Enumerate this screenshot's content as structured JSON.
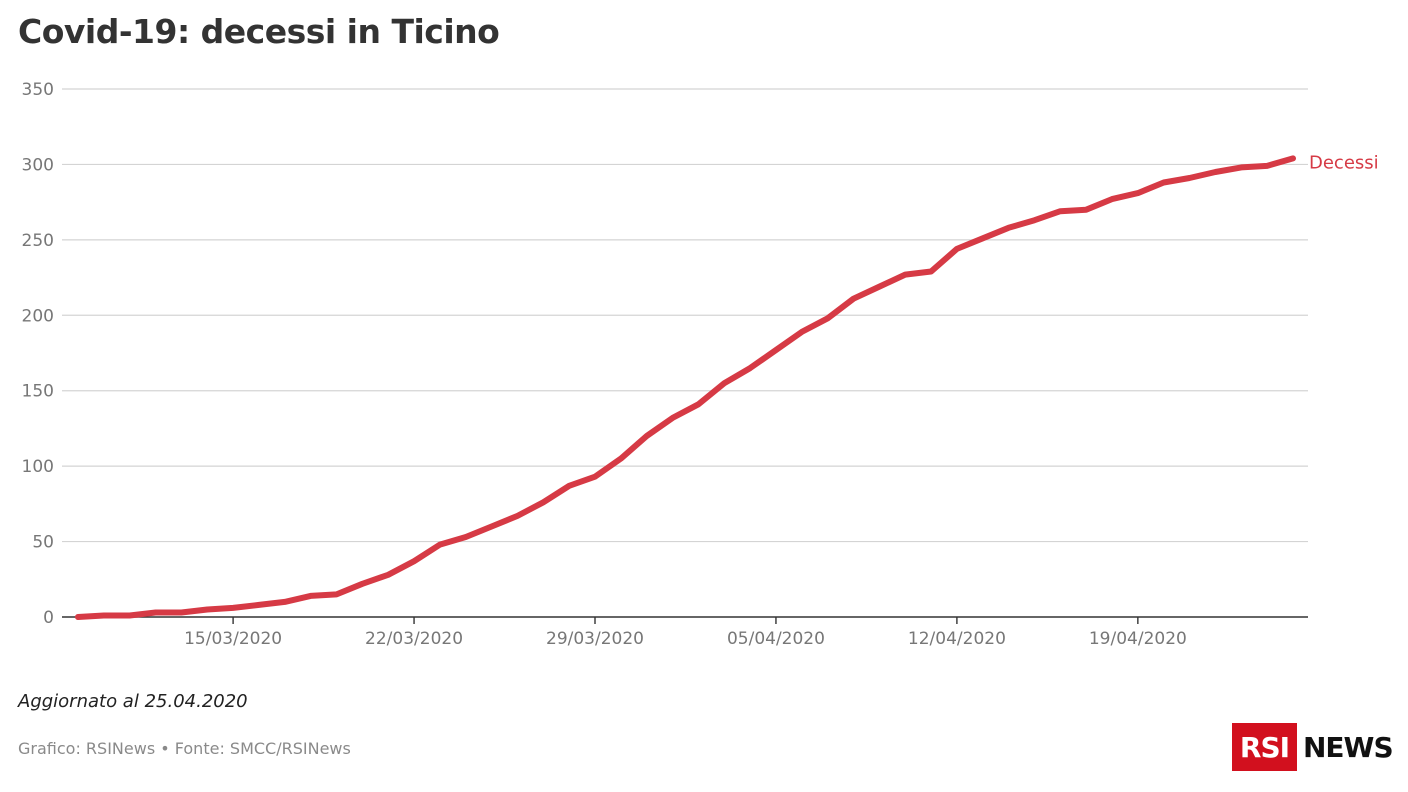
{
  "title": "Covid-19: decessi in Ticino",
  "footer": {
    "note": "Aggiornato al 25.04.2020",
    "source": "Grafico: RSINews • Fonte: SMCC/RSINews"
  },
  "logo": {
    "box": "RSI",
    "text": "NEWS"
  },
  "colors": {
    "line": "#d63a45",
    "grid": "#d4d4d4",
    "axis": "#333333",
    "tick": "#777777"
  },
  "chart_data": {
    "type": "line",
    "title": "Covid-19: decessi in Ticino",
    "xlabel": "",
    "ylabel": "",
    "ylim": [
      0,
      350
    ],
    "yticks": [
      0,
      50,
      100,
      150,
      200,
      250,
      300,
      350
    ],
    "xticks": [
      {
        "index": 6,
        "label": "15/03/2020"
      },
      {
        "index": 13,
        "label": "22/03/2020"
      },
      {
        "index": 20,
        "label": "29/03/2020"
      },
      {
        "index": 27,
        "label": "05/04/2020"
      },
      {
        "index": 34,
        "label": "12/04/2020"
      },
      {
        "index": 41,
        "label": "19/04/2020"
      }
    ],
    "x_start": "09/03/2020",
    "x_end": "25/04/2020",
    "series": [
      {
        "name": "Decessi",
        "values": [
          0,
          1,
          1,
          3,
          3,
          5,
          6,
          8,
          10,
          14,
          15,
          22,
          28,
          37,
          48,
          53,
          60,
          67,
          76,
          87,
          93,
          105,
          120,
          132,
          141,
          155,
          165,
          177,
          189,
          198,
          211,
          219,
          227,
          229,
          244,
          251,
          258,
          263,
          269,
          270,
          277,
          281,
          288,
          291,
          295,
          298,
          299,
          304
        ]
      }
    ]
  }
}
